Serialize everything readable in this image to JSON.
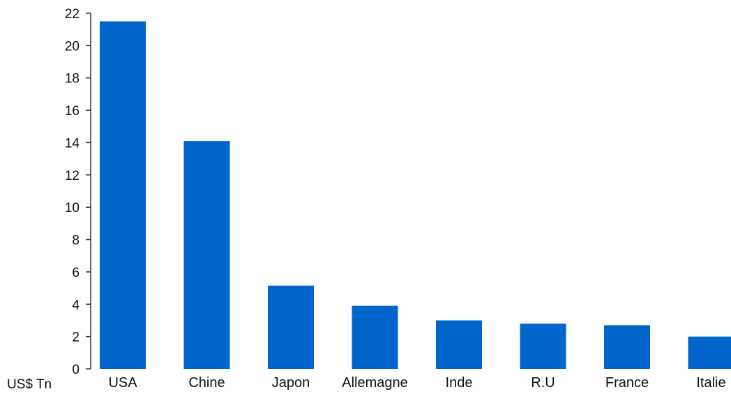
{
  "chart_data": {
    "type": "bar",
    "categories": [
      "USA",
      "Chine",
      "Japon",
      "Allemagne",
      "Inde",
      "R.U",
      "France",
      "Italie"
    ],
    "values": [
      21.5,
      14.1,
      5.15,
      3.9,
      3.0,
      2.8,
      2.7,
      2.0
    ],
    "ylabel": "US$ Tn",
    "ylim": [
      0,
      22
    ],
    "yticks": [
      0,
      2,
      4,
      6,
      8,
      10,
      12,
      14,
      16,
      18,
      20,
      22
    ],
    "grid": false,
    "bar_color": "#0066CC",
    "axis_color": "#333333"
  }
}
